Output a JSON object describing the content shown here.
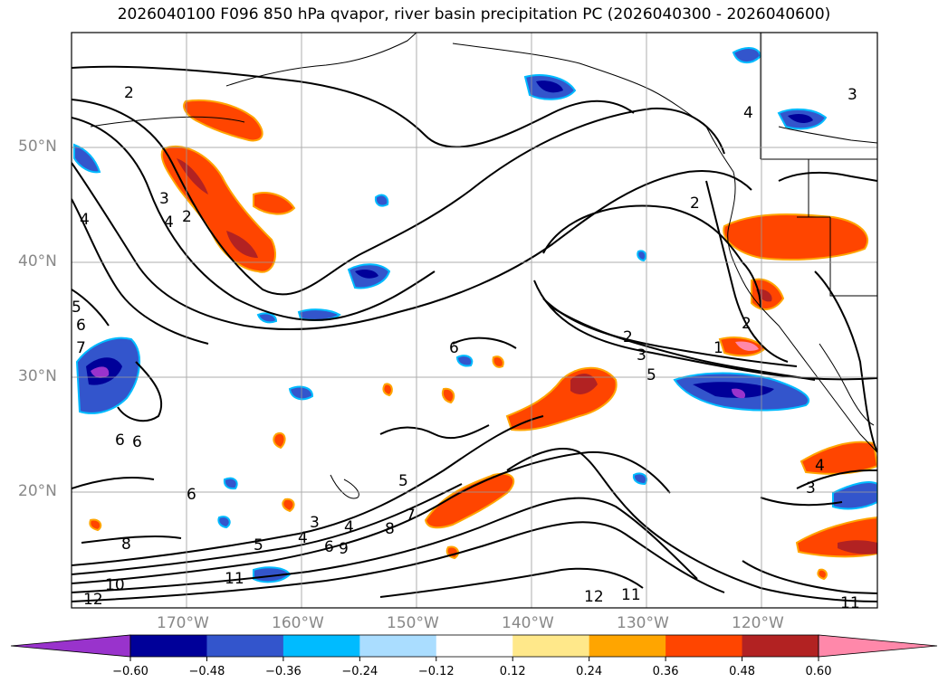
{
  "title": "2026040100 F096 850 hPa qvapor, river basin precipitation PC (2026040300 - 2026040600)",
  "axes": {
    "lat_labels": [
      "50°N",
      "40°N",
      "30°N",
      "20°N"
    ],
    "lon_labels": [
      "170°W",
      "160°W",
      "150°W",
      "140°W",
      "130°W",
      "120°W"
    ]
  },
  "colorbar": {
    "colors": [
      "#9933cc",
      "#000099",
      "#3355cc",
      "#00bbff",
      "#aaddff",
      "#ffffff",
      "#ffe88a",
      "#ffa500",
      "#ff4500",
      "#b22222",
      "#ff88aa"
    ],
    "ticks": [
      "−0.60",
      "−0.48",
      "−0.36",
      "−0.24",
      "−0.12",
      "0.12",
      "0.24",
      "0.36",
      "0.48",
      "0.60"
    ]
  },
  "contour_labels": [
    "2",
    "3",
    "4",
    "2",
    "4",
    "5",
    "6",
    "7",
    "6",
    "6",
    "8",
    "10",
    "11",
    "12",
    "6",
    "5",
    "4",
    "3",
    "9",
    "8",
    "7",
    "6",
    "5",
    "4",
    "1",
    "2",
    "3",
    "5",
    "12",
    "11",
    "2",
    "4",
    "3",
    "4",
    "3",
    "2",
    "6",
    "11"
  ]
}
